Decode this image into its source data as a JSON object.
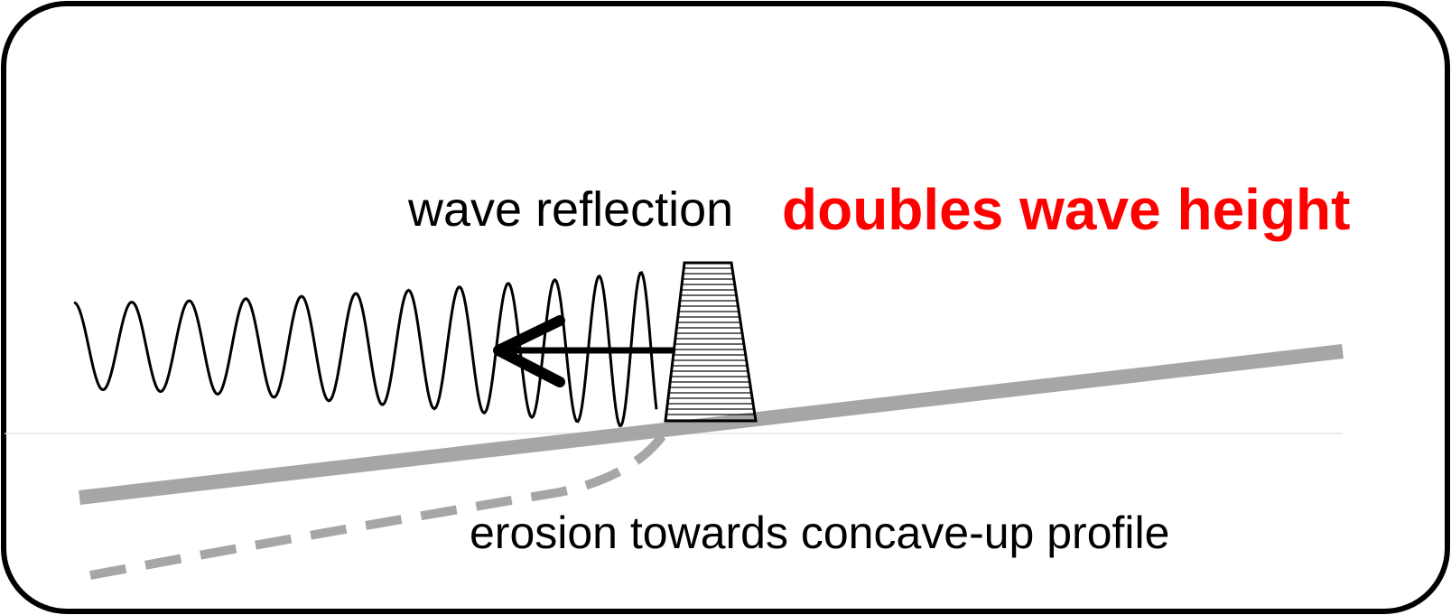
{
  "labels": {
    "reflection_prefix": "wave reflection",
    "reflection_emphasis": "doubles wave height",
    "erosion": "erosion towards concave-up profile"
  },
  "colors": {
    "frame": "#000000",
    "wave": "#000000",
    "arrow": "#000000",
    "seabed": "#a6a6a6",
    "eroded_profile": "#a6a6a6",
    "emphasis": "#ff0000",
    "water_line": "#e6e6e6"
  },
  "icons": {
    "breakwater": "trapezoid-hatched-structure",
    "arrow": "arrow-left"
  }
}
